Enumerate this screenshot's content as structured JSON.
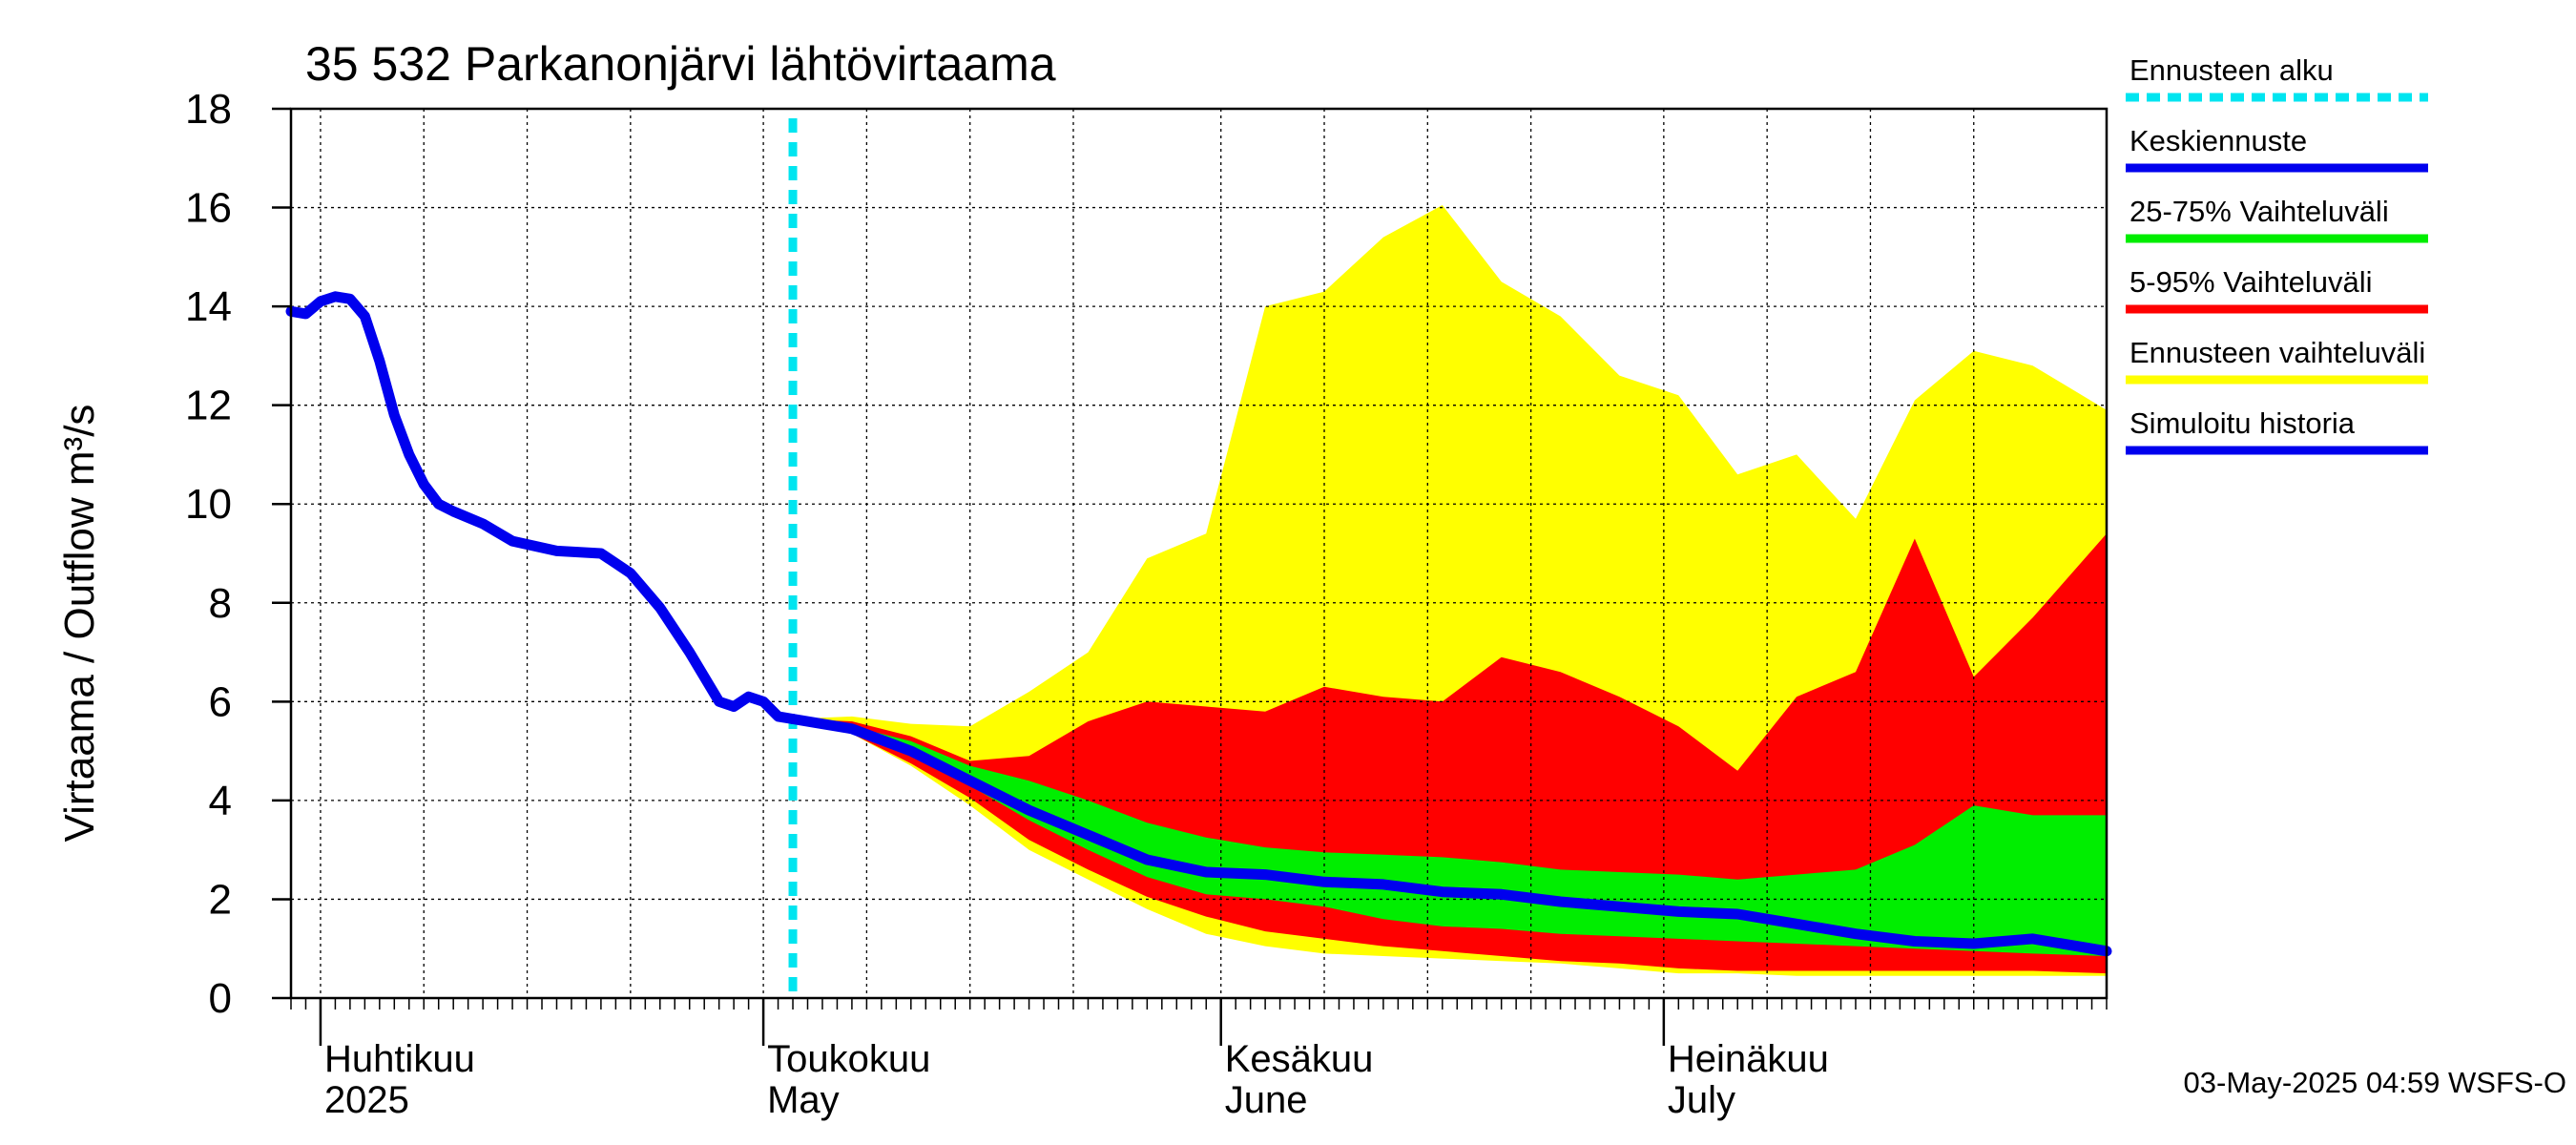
{
  "chart_data": {
    "type": "area",
    "title": "35 532 Parkanonjärvi lähtövirtaama",
    "ylabel": "Virtaama / Outflow    m³/s",
    "ylim": [
      0,
      18
    ],
    "yticks": [
      "0",
      "2",
      "4",
      "6",
      "8",
      "10",
      "12",
      "14",
      "16",
      "18"
    ],
    "x_range": [
      "2025-03-30",
      "2025-07-31"
    ],
    "grid": true,
    "legend_position": "right",
    "months": [
      {
        "label1": "Huhtikuu",
        "label2": "2025",
        "date": "2025-04-01"
      },
      {
        "label1": "Toukokuu",
        "label2": "May",
        "date": "2025-05-01"
      },
      {
        "label1": "Kesäkuu",
        "label2": "June",
        "date": "2025-06-01"
      },
      {
        "label1": "Heinäkuu",
        "label2": "July",
        "date": "2025-07-01"
      }
    ],
    "forecast_start": "2025-05-03",
    "legend": [
      {
        "label": "Ennusteen alku",
        "color": "#00e5f0",
        "style": "dashed"
      },
      {
        "label": "Keskiennuste",
        "color": "#0000ee",
        "style": "solid"
      },
      {
        "label": "25-75% Vaihteluväli",
        "color": "#00ee00",
        "style": "solid"
      },
      {
        "label": "5-95% Vaihteluväli",
        "color": "#ff0000",
        "style": "solid"
      },
      {
        "label": "Ennusteen vaihteluväli",
        "color": "#ffff00",
        "style": "solid"
      },
      {
        "label": "Simuloitu historia",
        "color": "#0000ee",
        "style": "solid"
      }
    ],
    "history": {
      "name": "Simuloitu historia",
      "x": [
        "2025-03-30",
        "2025-03-31",
        "2025-04-01",
        "2025-04-02",
        "2025-04-03",
        "2025-04-04",
        "2025-04-05",
        "2025-04-06",
        "2025-04-07",
        "2025-04-08",
        "2025-04-09",
        "2025-04-10",
        "2025-04-12",
        "2025-04-14",
        "2025-04-17",
        "2025-04-20",
        "2025-04-22",
        "2025-04-24",
        "2025-04-26",
        "2025-04-27",
        "2025-04-28",
        "2025-04-29",
        "2025-04-30",
        "2025-05-01",
        "2025-05-02",
        "2025-05-03"
      ],
      "values": [
        13.9,
        13.85,
        14.1,
        14.2,
        14.15,
        13.8,
        12.9,
        11.8,
        11.0,
        10.4,
        10.0,
        9.85,
        9.6,
        9.25,
        9.05,
        9.0,
        8.6,
        7.9,
        7.0,
        6.5,
        6.0,
        5.9,
        6.1,
        6.0,
        5.7,
        5.65
      ]
    },
    "median": {
      "name": "Keskiennuste",
      "x": [
        "2025-05-03",
        "2025-05-07",
        "2025-05-11",
        "2025-05-15",
        "2025-05-19",
        "2025-05-23",
        "2025-05-27",
        "2025-05-31",
        "2025-06-04",
        "2025-06-08",
        "2025-06-12",
        "2025-06-16",
        "2025-06-20",
        "2025-06-24",
        "2025-06-28",
        "2025-07-02",
        "2025-07-06",
        "2025-07-10",
        "2025-07-14",
        "2025-07-18",
        "2025-07-22",
        "2025-07-26",
        "2025-07-31"
      ],
      "values": [
        5.65,
        5.45,
        5.0,
        4.4,
        3.8,
        3.3,
        2.8,
        2.55,
        2.5,
        2.35,
        2.3,
        2.15,
        2.1,
        1.95,
        1.85,
        1.75,
        1.7,
        1.5,
        1.3,
        1.15,
        1.1,
        1.2,
        0.95
      ]
    },
    "band_dates": [
      "2025-05-03",
      "2025-05-07",
      "2025-05-11",
      "2025-05-15",
      "2025-05-19",
      "2025-05-23",
      "2025-05-27",
      "2025-05-31",
      "2025-06-04",
      "2025-06-08",
      "2025-06-12",
      "2025-06-16",
      "2025-06-20",
      "2025-06-24",
      "2025-06-28",
      "2025-07-02",
      "2025-07-06",
      "2025-07-10",
      "2025-07-14",
      "2025-07-18",
      "2025-07-22",
      "2025-07-26",
      "2025-07-31"
    ],
    "series": [
      {
        "name": "Ennusteen vaihteluväli",
        "color": "#ffff00",
        "low": [
          5.65,
          5.35,
          4.7,
          3.9,
          3.0,
          2.4,
          1.8,
          1.3,
          1.05,
          0.9,
          0.85,
          0.8,
          0.75,
          0.7,
          0.6,
          0.5,
          0.5,
          0.45,
          0.45,
          0.45,
          0.45,
          0.45,
          0.45
        ],
        "high": [
          5.65,
          5.7,
          5.55,
          5.5,
          6.2,
          7.0,
          8.9,
          9.4,
          14.0,
          14.3,
          15.4,
          16.05,
          14.5,
          13.8,
          12.6,
          12.2,
          10.6,
          11.0,
          9.7,
          12.1,
          13.1,
          12.8,
          11.9
        ]
      },
      {
        "name": "5-95% Vaihteluväli",
        "color": "#ff0000",
        "low": [
          5.65,
          5.35,
          4.75,
          4.05,
          3.2,
          2.6,
          2.05,
          1.65,
          1.35,
          1.2,
          1.05,
          0.95,
          0.85,
          0.75,
          0.7,
          0.6,
          0.55,
          0.55,
          0.55,
          0.55,
          0.55,
          0.55,
          0.5
        ],
        "high": [
          5.65,
          5.6,
          5.3,
          4.8,
          4.9,
          5.6,
          6.0,
          5.9,
          5.8,
          6.3,
          6.1,
          6.0,
          6.9,
          6.6,
          6.1,
          5.5,
          4.6,
          6.1,
          6.6,
          9.3,
          6.5,
          7.7,
          9.4
        ]
      },
      {
        "name": "25-75% Vaihteluväli",
        "color": "#00ee00",
        "low": [
          5.65,
          5.4,
          4.95,
          4.3,
          3.6,
          3.0,
          2.45,
          2.1,
          2.0,
          1.85,
          1.6,
          1.45,
          1.4,
          1.3,
          1.25,
          1.2,
          1.15,
          1.1,
          1.05,
          1.0,
          0.95,
          0.9,
          0.85
        ],
        "high": [
          5.65,
          5.5,
          5.2,
          4.7,
          4.4,
          4.0,
          3.55,
          3.25,
          3.05,
          2.95,
          2.9,
          2.85,
          2.75,
          2.6,
          2.55,
          2.5,
          2.4,
          2.5,
          2.6,
          3.1,
          3.9,
          3.7,
          3.7
        ]
      }
    ]
  },
  "footer": "03-May-2025 04:59 WSFS-O"
}
